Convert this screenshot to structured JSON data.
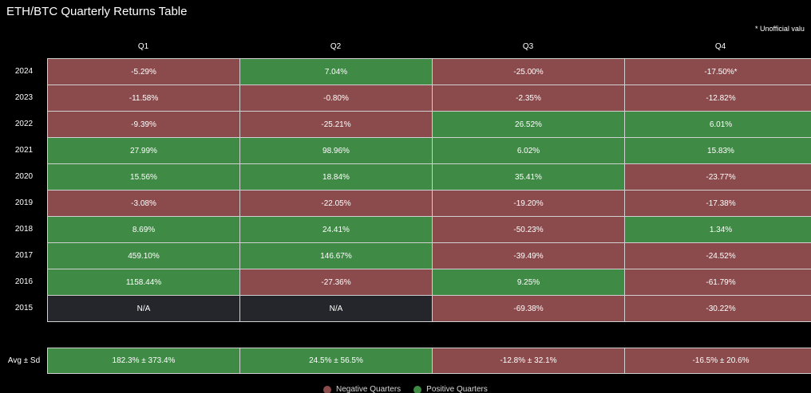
{
  "title": "ETH/BTC Quarterly Returns Table",
  "note": "* Unofficial valu",
  "colors": {
    "negative": "#8b4a4b",
    "positive": "#3f8a45",
    "na": "#25262b",
    "border": "#d0d0d0"
  },
  "legend": {
    "negative": "Negative Quarters",
    "positive": "Positive Quarters"
  },
  "chart_data": {
    "type": "table",
    "title": "ETH/BTC Quarterly Returns Table",
    "columns": [
      "Q1",
      "Q2",
      "Q3",
      "Q4"
    ],
    "rows": [
      {
        "label": "2024",
        "cells": [
          {
            "text": "-5.29%",
            "status": "negative"
          },
          {
            "text": "7.04%",
            "status": "positive"
          },
          {
            "text": "-25.00%",
            "status": "negative"
          },
          {
            "text": "-17.50%*",
            "status": "negative"
          }
        ]
      },
      {
        "label": "2023",
        "cells": [
          {
            "text": "-11.58%",
            "status": "negative"
          },
          {
            "text": "-0.80%",
            "status": "negative"
          },
          {
            "text": "-2.35%",
            "status": "negative"
          },
          {
            "text": "-12.82%",
            "status": "negative"
          }
        ]
      },
      {
        "label": "2022",
        "cells": [
          {
            "text": "-9.39%",
            "status": "negative"
          },
          {
            "text": "-25.21%",
            "status": "negative"
          },
          {
            "text": "26.52%",
            "status": "positive"
          },
          {
            "text": "6.01%",
            "status": "positive"
          }
        ]
      },
      {
        "label": "2021",
        "cells": [
          {
            "text": "27.99%",
            "status": "positive"
          },
          {
            "text": "98.96%",
            "status": "positive"
          },
          {
            "text": "6.02%",
            "status": "positive"
          },
          {
            "text": "15.83%",
            "status": "positive"
          }
        ]
      },
      {
        "label": "2020",
        "cells": [
          {
            "text": "15.56%",
            "status": "positive"
          },
          {
            "text": "18.84%",
            "status": "positive"
          },
          {
            "text": "35.41%",
            "status": "positive"
          },
          {
            "text": "-23.77%",
            "status": "negative"
          }
        ]
      },
      {
        "label": "2019",
        "cells": [
          {
            "text": "-3.08%",
            "status": "negative"
          },
          {
            "text": "-22.05%",
            "status": "negative"
          },
          {
            "text": "-19.20%",
            "status": "negative"
          },
          {
            "text": "-17.38%",
            "status": "negative"
          }
        ]
      },
      {
        "label": "2018",
        "cells": [
          {
            "text": "8.69%",
            "status": "positive"
          },
          {
            "text": "24.41%",
            "status": "positive"
          },
          {
            "text": "-50.23%",
            "status": "negative"
          },
          {
            "text": "1.34%",
            "status": "positive"
          }
        ]
      },
      {
        "label": "2017",
        "cells": [
          {
            "text": "459.10%",
            "status": "positive"
          },
          {
            "text": "146.67%",
            "status": "positive"
          },
          {
            "text": "-39.49%",
            "status": "negative"
          },
          {
            "text": "-24.52%",
            "status": "negative"
          }
        ]
      },
      {
        "label": "2016",
        "cells": [
          {
            "text": "1158.44%",
            "status": "positive"
          },
          {
            "text": "-27.36%",
            "status": "negative"
          },
          {
            "text": "9.25%",
            "status": "positive"
          },
          {
            "text": "-61.79%",
            "status": "negative"
          }
        ]
      },
      {
        "label": "2015",
        "cells": [
          {
            "text": "N/A",
            "status": "na"
          },
          {
            "text": "N/A",
            "status": "na"
          },
          {
            "text": "-69.38%",
            "status": "negative"
          },
          {
            "text": "-30.22%",
            "status": "negative"
          }
        ]
      }
    ],
    "summary": {
      "label": "Avg ± Sd",
      "cells": [
        {
          "text": "182.3% ± 373.4%",
          "status": "positive"
        },
        {
          "text": "24.5% ± 56.5%",
          "status": "positive"
        },
        {
          "text": "-12.8% ± 32.1%",
          "status": "negative"
        },
        {
          "text": "-16.5% ± 20.6%",
          "status": "negative"
        }
      ]
    }
  }
}
